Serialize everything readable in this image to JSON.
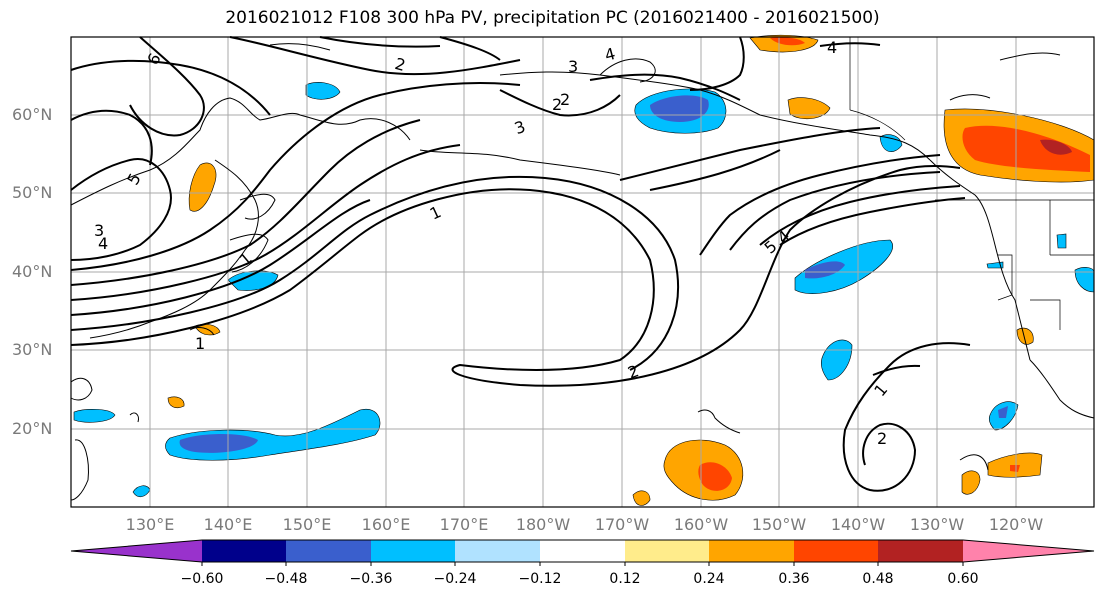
{
  "title": "2016021012 F108 300 hPa PV, precipitation PC (2016021400 - 2016021500)",
  "lat_labels": [
    "60°N",
    "50°N",
    "40°N",
    "30°N",
    "20°N"
  ],
  "lon_labels": [
    "130°E",
    "140°E",
    "150°E",
    "160°E",
    "170°E",
    "180°W",
    "170°W",
    "160°W",
    "150°W",
    "140°W",
    "130°W",
    "120°W"
  ],
  "colorbar": {
    "colors": [
      "#9932cc",
      "#00008b",
      "#3a5fcd",
      "#00bfff",
      "#b0e2ff",
      "#ffffff",
      "#ffec8b",
      "#ffa500",
      "#ff4500",
      "#b22222",
      "#ff82ab"
    ],
    "ticks": [
      "−0.60",
      "−0.48",
      "−0.36",
      "−0.24",
      "−0.12",
      "0.12",
      "0.24",
      "0.36",
      "0.48",
      "0.60"
    ]
  },
  "contour_labels": [
    "6",
    "5",
    "4",
    "3",
    "2",
    "1",
    "3",
    "4",
    "3",
    "2",
    "1",
    "4",
    "2",
    "1",
    "2",
    "5",
    "4",
    "1",
    "2"
  ]
}
